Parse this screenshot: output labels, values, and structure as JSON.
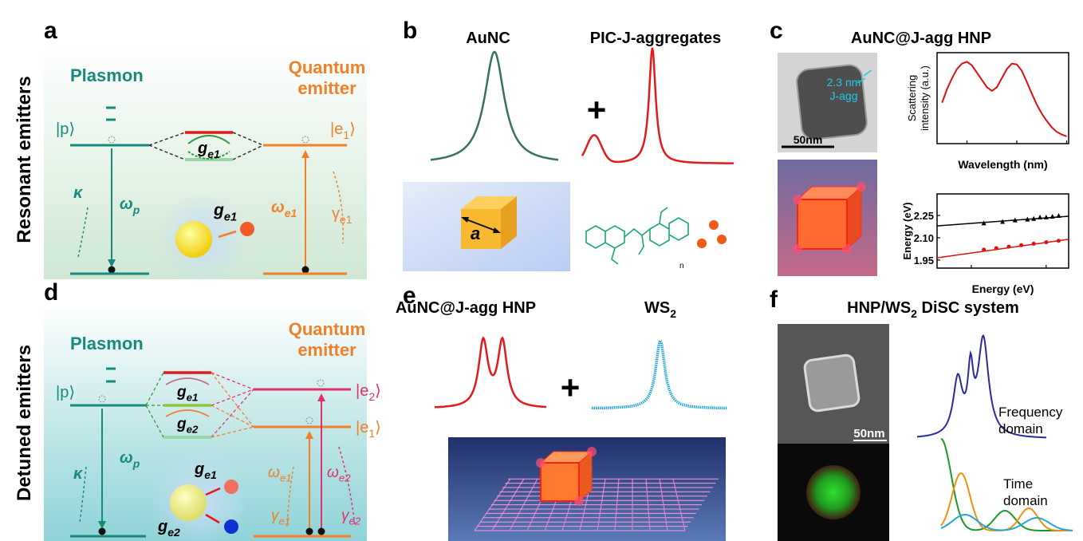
{
  "row_labels": [
    "Resonant emitters",
    "Detuned emitters"
  ],
  "a": {
    "letter": "a",
    "plasmon": "Plasmon",
    "emitter": [
      "Quantum",
      "emitter"
    ],
    "p_state": "|p⟩",
    "e1_state": {
      "text": "|e",
      "sub": "1",
      "after": "⟩"
    },
    "kappa": "κ",
    "omega_p": {
      "text": "ω",
      "sub": "p"
    },
    "omega_e1": {
      "text": "ω",
      "sub": "e1"
    },
    "gamma_e1": {
      "text": "γ",
      "sub": "e1"
    },
    "g_e1": {
      "text": "g",
      "sub": "e1"
    },
    "g_e1_inset": {
      "text": "g",
      "sub": "e1"
    }
  },
  "b": {
    "letter": "b",
    "aunc": "AuNC",
    "pic": "PIC-J-aggregates",
    "plus": "+",
    "edge": "a",
    "repeat": "n"
  },
  "c": {
    "letter": "c",
    "title": "AuNC@J-agg HNP",
    "shell": [
      "2.3 nm",
      "J-agg"
    ],
    "scale_bar": "50nm",
    "spectrum": {
      "x": [
        525,
        530,
        535,
        540,
        545,
        550,
        555,
        560,
        565,
        570,
        575,
        580,
        585,
        590,
        595,
        600,
        605,
        610,
        615,
        620,
        625,
        630,
        635,
        640,
        645,
        650
      ],
      "values": [
        0.45,
        0.6,
        0.72,
        0.82,
        0.88,
        0.9,
        0.86,
        0.78,
        0.7,
        0.62,
        0.58,
        0.62,
        0.72,
        0.82,
        0.88,
        0.87,
        0.8,
        0.68,
        0.55,
        0.43,
        0.33,
        0.25,
        0.18,
        0.13,
        0.1,
        0.08
      ],
      "xlim": [
        520,
        652
      ],
      "ylim": [
        0,
        1
      ],
      "xticks": [
        550,
        600,
        650
      ],
      "xlabel": "Wavelength (nm)",
      "ylabel": [
        "Scattering",
        "intensity (a.u.)"
      ],
      "color": "#e01010"
    },
    "dispersion": {
      "xlim": [
        1.985,
        2.196
      ],
      "ylim": [
        1.896,
        2.395
      ],
      "xticks": [
        2.04,
        2.16
      ],
      "yticks": [
        {
          "value": 2.25,
          "label": "2.25"
        },
        {
          "value": 2.1,
          "label": "2.10"
        },
        {
          "value": 1.95,
          "label": "1.95"
        }
      ],
      "xlabel": "Energy (eV)",
      "ylabel": "Energy (eV)",
      "series": [
        {
          "color": "#000000",
          "marker": "triangle",
          "x": [
            2.06,
            2.09,
            2.11,
            2.13,
            2.14,
            2.15,
            2.16,
            2.17,
            2.18
          ],
          "values": [
            2.2,
            2.21,
            2.22,
            2.225,
            2.23,
            2.24,
            2.24,
            2.245,
            2.25
          ],
          "fit_x": [
            1.985,
            2.196
          ],
          "fit_values": [
            2.18,
            2.245
          ]
        },
        {
          "color": "#e01010",
          "marker": "circle",
          "x": [
            2.06,
            2.08,
            2.1,
            2.12,
            2.14,
            2.16,
            2.18
          ],
          "values": [
            2.02,
            2.03,
            2.04,
            2.05,
            2.06,
            2.07,
            2.08
          ],
          "fit_x": [
            1.985,
            2.196
          ],
          "fit_values": [
            1.965,
            2.09
          ]
        }
      ]
    }
  },
  "d": {
    "letter": "d",
    "plasmon": "Plasmon",
    "emitter": [
      "Quantum",
      "emitter"
    ],
    "p_state": "|p⟩",
    "e1_state": {
      "text": "|e",
      "sub": "1",
      "after": "⟩"
    },
    "e2_state": {
      "text": "|e",
      "sub": "2",
      "after": "⟩"
    },
    "kappa": "κ",
    "omega_p": {
      "text": "ω",
      "sub": "p"
    },
    "omega_e1": {
      "text": "ω",
      "sub": "e1"
    },
    "omega_e2": {
      "text": "ω",
      "sub": "e2"
    },
    "gamma_e1": {
      "text": "γ",
      "sub": "e1"
    },
    "gamma_e2": {
      "text": "γ",
      "sub": "e2"
    },
    "g_e1": {
      "text": "g",
      "sub": "e1"
    },
    "g_e2": {
      "text": "g",
      "sub": "e2"
    },
    "g_e1_inset": {
      "text": "g",
      "sub": "e1"
    },
    "g_e2_inset": {
      "text": "g",
      "sub": "e2"
    }
  },
  "e": {
    "letter": "e",
    "hnp": "AuNC@J-agg HNP",
    "ws2": {
      "text": "WS",
      "sub": "2"
    },
    "plus": "+"
  },
  "f": {
    "letter": "f",
    "title": {
      "text": "HNP/WS",
      "sub": "2",
      "after": " DiSC system"
    },
    "scale_bar": "50nm",
    "frequency": [
      "Frequency",
      "domain"
    ],
    "time": [
      "Time",
      "domain"
    ]
  }
}
